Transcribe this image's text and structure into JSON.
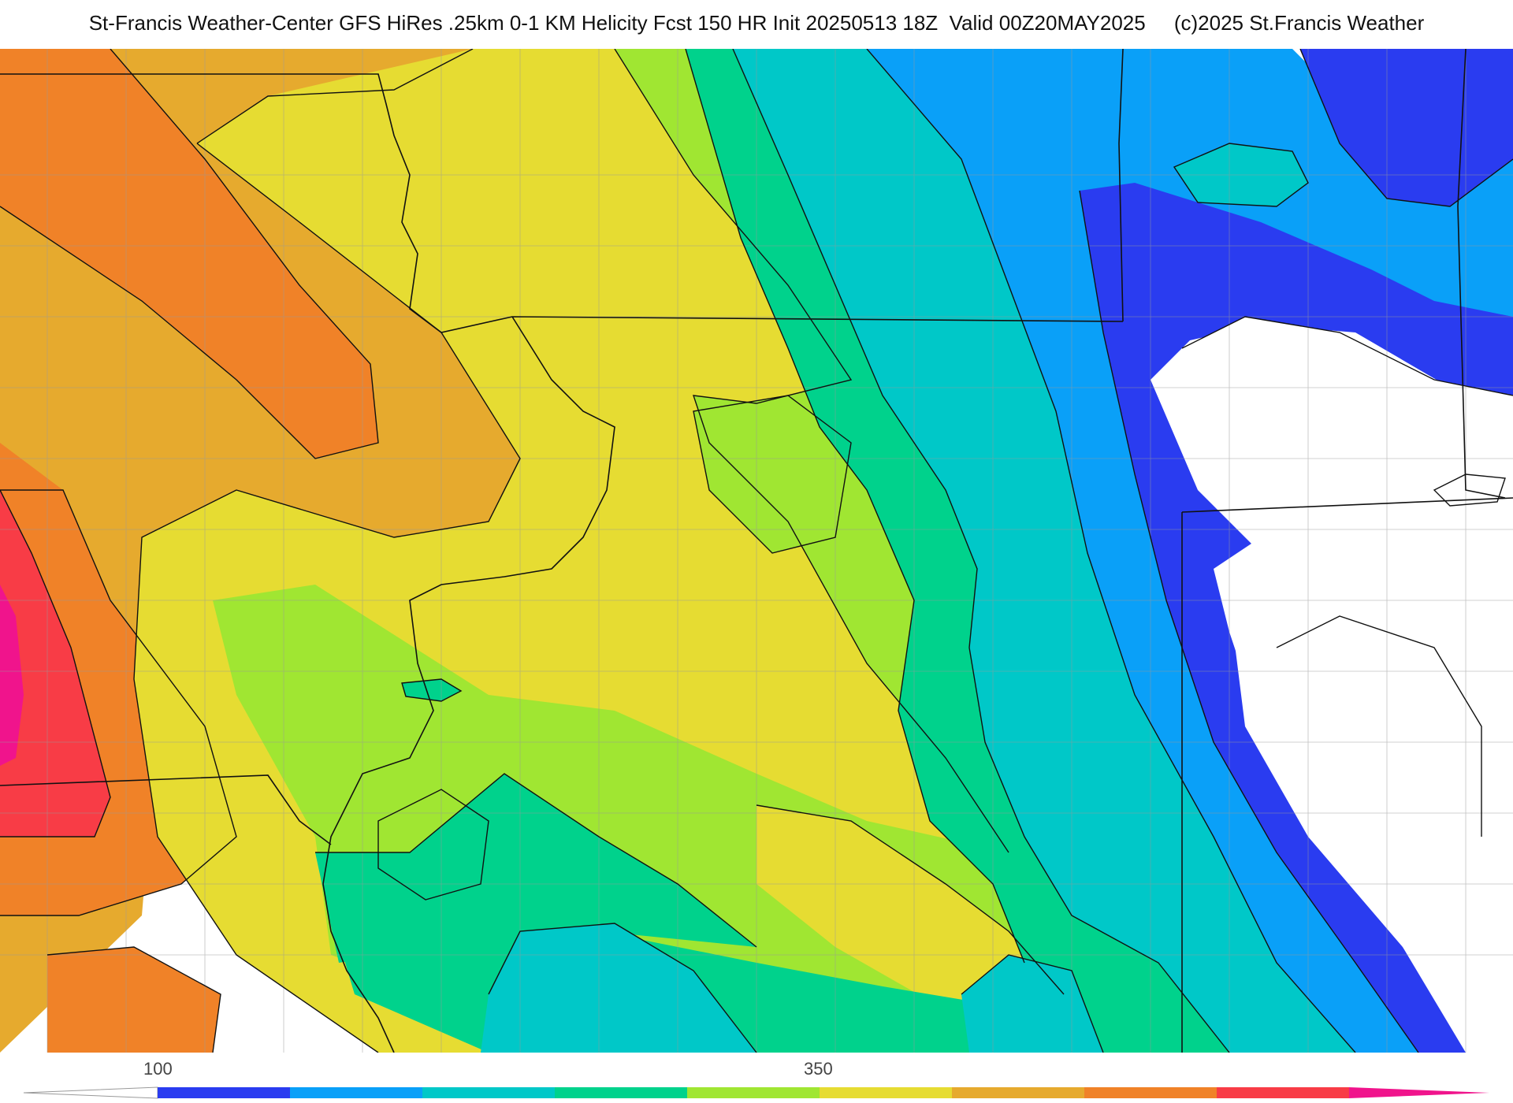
{
  "title": "St-Francis Weather-Center GFS HiRes .25km 0-1 KM Helicity Fcst 150 HR Init 20250513 18Z  Valid 00Z20MAY2025     (c)2025 St.Francis Weather",
  "colorbar": {
    "tick_labels": [
      "100",
      "350"
    ],
    "colors": [
      "#ffffff",
      "#2a3cf0",
      "#0aa0f8",
      "#00c8c8",
      "#00d28c",
      "#a0e632",
      "#e6dc32",
      "#e6aa2e",
      "#f08228",
      "#f83c46",
      "#f0148c"
    ]
  },
  "fills": {
    "c1": "#2a3cf0",
    "c2": "#0aa0f8",
    "c3": "#00c8c8",
    "c4": "#00d28c",
    "c5": "#a0e632",
    "c6": "#e6dc32",
    "c7": "#e6aa2e",
    "c8": "#f08228",
    "c9": "#f83c46",
    "c10": "#f0148c"
  }
}
